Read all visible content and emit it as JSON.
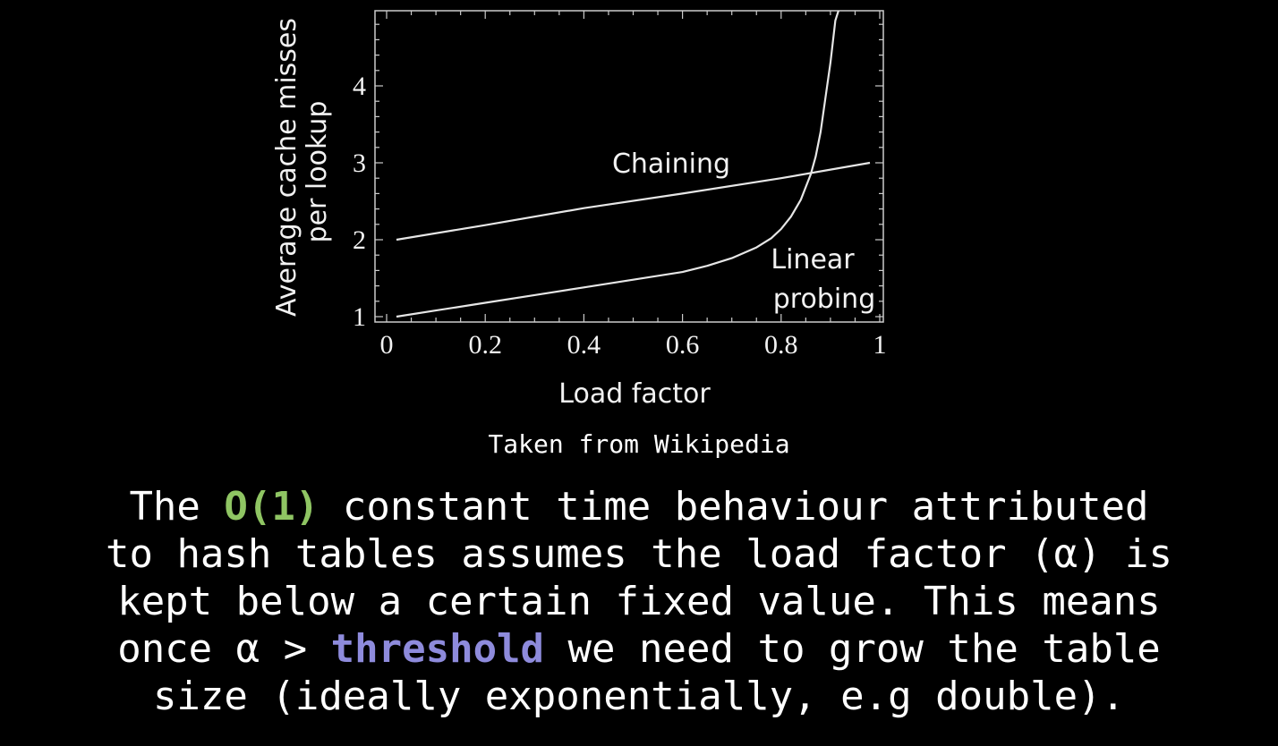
{
  "chart_data": {
    "type": "line",
    "xlabel": "Load factor",
    "ylabel_lines": [
      "Average cache misses",
      "per lookup"
    ],
    "xlim": [
      0,
      1
    ],
    "ylim": [
      1,
      5
    ],
    "xticks": [
      "0",
      "0.2",
      "0.4",
      "0.6",
      "0.8",
      "1"
    ],
    "yticks": [
      "1",
      "2",
      "3",
      "4"
    ],
    "grid": false,
    "series": [
      {
        "name": "Chaining",
        "x": [
          0.02,
          0.2,
          0.4,
          0.6,
          0.8,
          0.98
        ],
        "y": [
          2.0,
          2.19,
          2.41,
          2.6,
          2.8,
          3.0
        ]
      },
      {
        "name_lines": [
          "Linear",
          "probing"
        ],
        "x": [
          0.02,
          0.1,
          0.2,
          0.3,
          0.4,
          0.5,
          0.6,
          0.65,
          0.7,
          0.75,
          0.78,
          0.8,
          0.82,
          0.84,
          0.86,
          0.87,
          0.88,
          0.89,
          0.9,
          0.91,
          0.92
        ],
        "y": [
          1.0,
          1.08,
          1.18,
          1.28,
          1.38,
          1.48,
          1.58,
          1.66,
          1.76,
          1.9,
          2.02,
          2.14,
          2.3,
          2.52,
          2.85,
          3.08,
          3.4,
          3.85,
          4.3,
          4.85,
          5.05
        ]
      }
    ]
  },
  "caption": "Taken from Wikipedia",
  "body": {
    "line1_pre": "The ",
    "line1_hl": "O(1)",
    "line1_post": " constant time behaviour attributed",
    "line2": "to hash tables assumes the load factor (α) is",
    "line3": "kept below a certain fixed value. This means",
    "line4_pre": "once α > ",
    "line4_hl": "threshold",
    "line4_post": " we need to grow the table",
    "line5": "size (ideally exponentially, e.g double)."
  },
  "colors": {
    "highlight_green": "#8fc563",
    "highlight_blue": "#8e8bdc",
    "foreground": "#ffffff",
    "background": "#000000"
  }
}
